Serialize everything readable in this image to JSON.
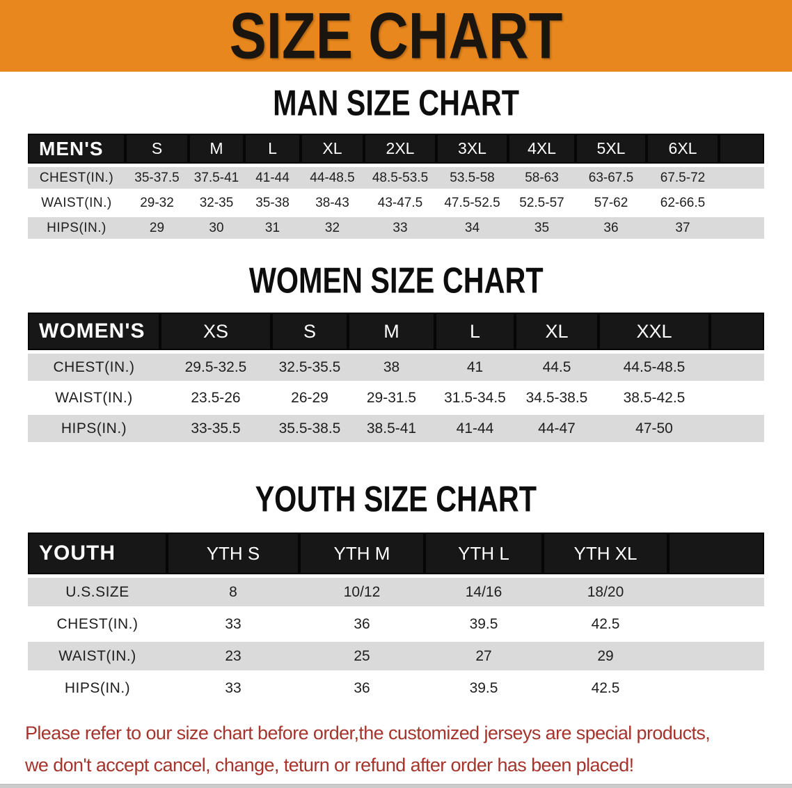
{
  "banner": {
    "title": "SIZE CHART",
    "bg_color": "#e8871e"
  },
  "sections": [
    {
      "heading": "MAN SIZE CHART",
      "table": {
        "corner_label": "MEN'S",
        "sizes": [
          "S",
          "M",
          "L",
          "XL",
          "2XL",
          "3XL",
          "4XL",
          "5XL",
          "6XL"
        ],
        "rows": [
          {
            "label": "CHEST(IN.)",
            "values": [
              "35-37.5",
              "37.5-41",
              "41-44",
              "44-48.5",
              "48.5-53.5",
              "53.5-58",
              "58-63",
              "63-67.5",
              "67.5-72"
            ]
          },
          {
            "label": "WAIST(IN.)",
            "values": [
              "29-32",
              "32-35",
              "35-38",
              "38-43",
              "43-47.5",
              "47.5-52.5",
              "52.5-57",
              "57-62",
              "62-66.5"
            ]
          },
          {
            "label": "HIPS(IN.)",
            "values": [
              "29",
              "30",
              "31",
              "32",
              "33",
              "34",
              "35",
              "36",
              "37"
            ]
          }
        ]
      }
    },
    {
      "heading": "WOMEN SIZE CHART",
      "table": {
        "corner_label": "WOMEN'S",
        "sizes": [
          "XS",
          "S",
          "M",
          "L",
          "XL",
          "XXL"
        ],
        "rows": [
          {
            "label": "CHEST(IN.)",
            "values": [
              "29.5-32.5",
              "32.5-35.5",
              "38",
              "41",
              "44.5",
              "44.5-48.5"
            ]
          },
          {
            "label": "WAIST(IN.)",
            "values": [
              "23.5-26",
              "26-29",
              "29-31.5",
              "31.5-34.5",
              "34.5-38.5",
              "38.5-42.5"
            ]
          },
          {
            "label": "HIPS(IN.)",
            "values": [
              "33-35.5",
              "35.5-38.5",
              "38.5-41",
              "41-44",
              "44-47",
              "47-50"
            ]
          }
        ]
      }
    },
    {
      "heading": "YOUTH SIZE CHART",
      "table": {
        "corner_label": "YOUTH",
        "sizes": [
          "YTH S",
          "YTH M",
          "YTH L",
          "YTH XL"
        ],
        "rows": [
          {
            "label": "U.S.SIZE",
            "values": [
              "8",
              "10/12",
              "14/16",
              "18/20"
            ]
          },
          {
            "label": "CHEST(IN.)",
            "values": [
              "33",
              "36",
              "39.5",
              "42.5"
            ]
          },
          {
            "label": "WAIST(IN.)",
            "values": [
              "23",
              "25",
              "27",
              "29"
            ]
          },
          {
            "label": "HIPS(IN.)",
            "values": [
              "33",
              "36",
              "39.5",
              "42.5"
            ]
          }
        ]
      }
    }
  ],
  "footer": {
    "line1": "Please refer to our size chart before order,the customized jerseys are special products,",
    "line2": "we don't accept cancel, change, teturn or refund after order has been placed!",
    "text_color": "#a5342c"
  }
}
